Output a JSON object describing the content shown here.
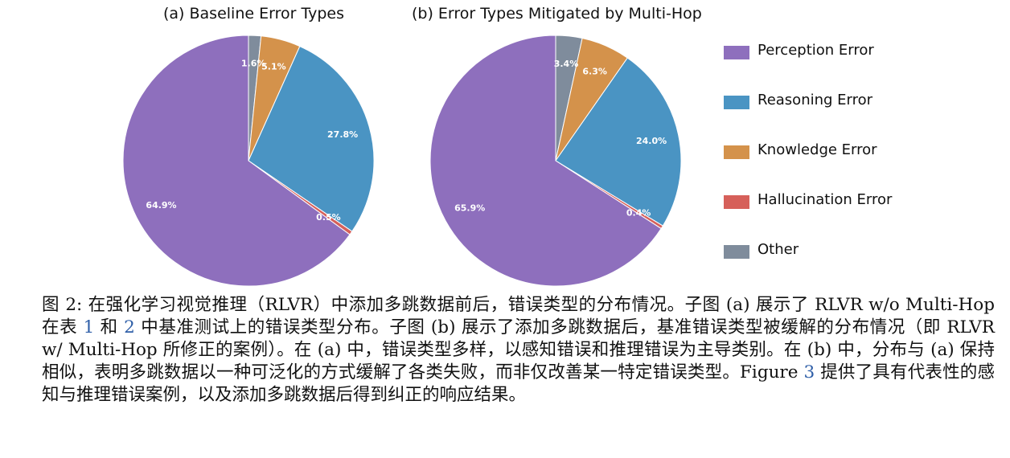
{
  "chart_data": [
    {
      "type": "pie",
      "title": "(a) Baseline Error Types",
      "start": "top, clockwise",
      "slices": [
        {
          "label": "Other",
          "value": 1.6,
          "value_label": "1.6%",
          "color": "#7f8c9c"
        },
        {
          "label": "Knowledge Error",
          "value": 5.1,
          "value_label": "5.1%",
          "color": "#d4924b"
        },
        {
          "label": "Reasoning Error",
          "value": 27.8,
          "value_label": "27.8%",
          "color": "#4a94c3"
        },
        {
          "label": "Hallucination Error",
          "value": 0.5,
          "value_label": "0.5%",
          "color": "#d6605a"
        },
        {
          "label": "Hallucination Error",
          "value": 0.5,
          "value_label": "",
          "color": "#d6605a",
          "_dup": true
        },
        {
          "label": "Perception Error",
          "value": 64.9,
          "value_label": "64.9%",
          "color": "#8e6fbd"
        }
      ]
    },
    {
      "type": "pie",
      "title": "(b) Error Types Mitigated by Multi-Hop",
      "start": "top, clockwise",
      "slices": [
        {
          "label": "Other",
          "value": 3.4,
          "value_label": "3.4%",
          "color": "#7f8c9c"
        },
        {
          "label": "Knowledge Error",
          "value": 6.3,
          "value_label": "6.3%",
          "color": "#d4924b"
        },
        {
          "label": "Reasoning Error",
          "value": 24.0,
          "value_label": "24.0%",
          "color": "#4a94c3"
        },
        {
          "label": "Hallucination Error",
          "value": 0.4,
          "value_label": "0.4%",
          "color": "#d6605a"
        },
        {
          "label": "Perception Error",
          "value": 65.9,
          "value_label": "65.9%",
          "color": "#8e6fbd"
        }
      ]
    }
  ],
  "legend": [
    {
      "label": "Perception Error",
      "color": "#8e6fbd"
    },
    {
      "label": "Reasoning Error",
      "color": "#4a94c3"
    },
    {
      "label": "Knowledge Error",
      "color": "#d4924b"
    },
    {
      "label": "Hallucination Error",
      "color": "#d6605a"
    },
    {
      "label": "Other",
      "color": "#7f8c9c"
    }
  ],
  "caption": {
    "part1": "图 2: 在强化学习视觉推理（RLVR）中添加多跳数据前后，错误类型的分布情况。子图 (a) 展示了 RLVR w/o Multi-Hop 在表 ",
    "ref1": "1",
    "part2": " 和 ",
    "ref2": "2",
    "part3": " 中基准测试上的错误类型分布。子图 (b) 展示了添加多跳数据后，基准错误类型被缓解的分布情况（即 RLVR w/ Multi-Hop 所修正的案例）。在 (a) 中，错误类型多样，以感知错误和推理错误为主导类别。在 (b) 中，分布与 (a) 保持相似，表明多跳数据以一种可泛化的方式缓解了各类失败，而非仅改善某一特定错误类型。Figure ",
    "ref3": "3",
    "part4": " 提供了具有代表性的感知与推理错误案例，以及添加多跳数据后得到纠正的响应结果。"
  }
}
